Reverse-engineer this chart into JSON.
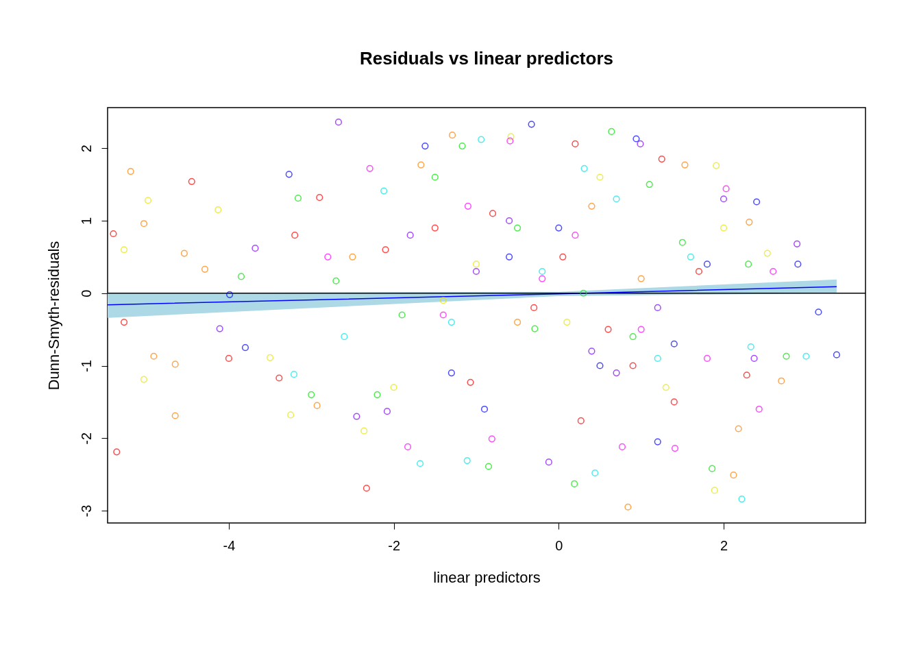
{
  "chart_data": {
    "type": "scatter",
    "title": "Residuals vs linear predictors",
    "xlabel": "linear predictors",
    "ylabel": "Dunn-Smyth-residuals",
    "xlim": [
      -5.47,
      3.72
    ],
    "ylim": [
      -3.17,
      2.56
    ],
    "xticks": [
      -4,
      -2,
      0,
      2
    ],
    "yticks": [
      -3,
      -2,
      -1,
      0,
      1,
      2
    ],
    "grid": false,
    "marker": "circle",
    "series": [
      {
        "color": "#ff0000",
        "x": [
          -4.45,
          -5.36,
          -2.33,
          -5.27,
          0.27,
          1.25,
          -3.39,
          -1.07,
          2.28,
          0.2,
          -2.9,
          -1.5,
          0.6,
          1.7,
          -0.3,
          -2.1,
          0.9,
          -3.2,
          -0.8,
          1.4,
          -5.4,
          -4.0,
          0.05
        ],
        "values": [
          1.54,
          -2.19,
          -2.69,
          -0.4,
          -1.76,
          1.85,
          -1.17,
          -1.23,
          -1.13,
          2.06,
          1.32,
          0.9,
          -0.5,
          0.3,
          -0.2,
          0.6,
          -1.0,
          0.8,
          1.1,
          -1.5,
          0.82,
          -0.9,
          0.5
        ]
      },
      {
        "color": "#ff8000",
        "x": [
          -5.19,
          -5.03,
          -4.65,
          -4.65,
          -4.29,
          -4.54,
          -4.91,
          0.84,
          2.12,
          2.18,
          2.7,
          -1.29,
          -1.67,
          1.53,
          -2.93,
          2.31,
          -0.5,
          0.4,
          1.0,
          -2.5
        ],
        "values": [
          1.68,
          0.96,
          -0.98,
          -1.69,
          0.33,
          0.55,
          -0.87,
          -2.95,
          -2.51,
          -1.87,
          -1.21,
          2.18,
          1.77,
          1.77,
          -1.55,
          0.98,
          -0.4,
          1.2,
          0.2,
          0.5
        ]
      },
      {
        "color": "#e6e600",
        "x": [
          -4.98,
          -5.27,
          -4.13,
          -5.03,
          -3.5,
          -2.36,
          1.91,
          1.89,
          -0.58,
          2.53,
          -3.25,
          -1.0,
          0.5,
          1.3,
          -2.0,
          0.1,
          2.0,
          -1.4
        ],
        "values": [
          1.28,
          0.6,
          1.15,
          -1.19,
          -0.89,
          -1.9,
          1.76,
          -2.72,
          2.16,
          0.55,
          -1.68,
          0.4,
          1.6,
          -1.3,
          -1.3,
          -0.4,
          0.9,
          -0.1
        ]
      },
      {
        "color": "#00e600",
        "x": [
          0.19,
          1.86,
          -0.85,
          0.64,
          -3.85,
          -3.16,
          2.76,
          -1.17,
          -2.7,
          -0.29,
          -2.2,
          1.5,
          -1.5,
          0.9,
          -0.5,
          2.3,
          -3.0,
          1.1,
          -1.9,
          0.3
        ],
        "values": [
          -2.63,
          -2.42,
          -2.39,
          2.23,
          0.23,
          1.31,
          -0.87,
          2.03,
          0.17,
          -0.49,
          -1.4,
          0.7,
          1.6,
          -0.6,
          0.9,
          0.4,
          -1.4,
          1.5,
          -0.3,
          0.0
        ]
      },
      {
        "color": "#00e6e6",
        "x": [
          2.22,
          -1.68,
          -1.11,
          0.44,
          3.0,
          -0.94,
          0.31,
          -3.21,
          -2.12,
          2.33,
          -0.2,
          1.2,
          -1.3,
          0.7,
          -2.6,
          1.6
        ],
        "values": [
          -2.84,
          -2.35,
          -2.31,
          -2.48,
          -0.87,
          2.12,
          1.72,
          -1.12,
          1.41,
          -0.74,
          0.3,
          -0.9,
          -0.4,
          1.3,
          -0.6,
          0.5
        ]
      },
      {
        "color": "#0000ff",
        "x": [
          -0.33,
          0.94,
          3.37,
          3.15,
          -3.99,
          -3.27,
          2.4,
          1.2,
          -1.62,
          -0.6,
          0.5,
          -1.3,
          1.8,
          0.0,
          2.9,
          -0.9,
          1.4,
          -3.8
        ],
        "values": [
          2.33,
          2.13,
          -0.85,
          -0.26,
          -0.02,
          1.64,
          1.26,
          -2.05,
          2.03,
          0.5,
          -1.0,
          -1.1,
          0.4,
          0.9,
          0.4,
          -1.6,
          -0.7,
          -0.75
        ]
      },
      {
        "color": "#8000ff",
        "x": [
          -2.67,
          -3.68,
          -4.11,
          -0.12,
          2.37,
          2.89,
          0.99,
          -2.45,
          -2.08,
          -0.6,
          1.2,
          -1.0,
          0.4,
          2.0,
          -1.8,
          0.7
        ],
        "values": [
          2.36,
          0.62,
          -0.49,
          -2.33,
          -0.9,
          0.68,
          2.06,
          -1.7,
          -1.63,
          1.0,
          -0.2,
          0.3,
          -0.8,
          1.3,
          0.8,
          -1.1
        ]
      },
      {
        "color": "#ff00ff",
        "x": [
          -2.29,
          -1.83,
          2.43,
          1.41,
          -0.81,
          0.77,
          -0.59,
          2.03,
          -1.4,
          -2.8,
          0.2,
          1.0,
          -0.2,
          2.6,
          -1.1,
          1.8
        ],
        "values": [
          1.72,
          -2.12,
          -1.6,
          -2.14,
          -2.01,
          -2.12,
          2.1,
          1.44,
          -0.3,
          0.5,
          0.8,
          -0.5,
          0.2,
          0.3,
          1.2,
          -0.9
        ]
      },
      {
        "type": "line",
        "marker": "none",
        "color": "#0000ff",
        "x": [
          -5.47,
          0,
          3.37
        ],
        "values": [
          -0.16,
          -0.01,
          0.09
        ],
        "lower": [
          -0.34,
          -0.04,
          0.0
        ],
        "upper": [
          0.0,
          0.02,
          0.19
        ]
      }
    ],
    "ref_lines": [
      {
        "axis": "y",
        "value": 0,
        "color": "#000000"
      }
    ]
  }
}
